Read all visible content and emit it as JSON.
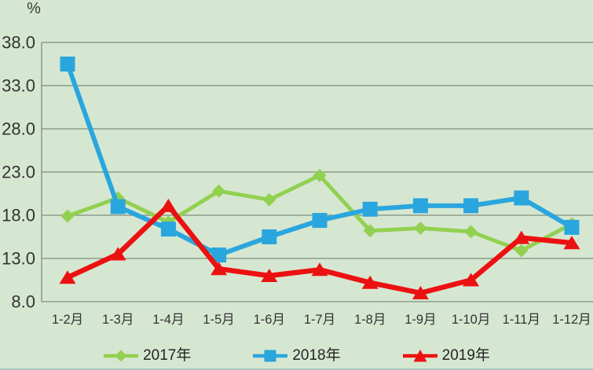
{
  "chart_data": {
    "type": "line",
    "title": "",
    "ylabel": "%",
    "xlabel": "",
    "ylim": [
      8.0,
      38.0
    ],
    "ytick_step": 5.0,
    "yticks": [
      "8.0",
      "13.0",
      "18.0",
      "23.0",
      "28.0",
      "33.0",
      "38.0"
    ],
    "grid": "horizontal-only",
    "legend_position": "bottom",
    "categories": [
      "1-2月",
      "1-3月",
      "1-4月",
      "1-5月",
      "1-6月",
      "1-7月",
      "1-8月",
      "1-9月",
      "1-10月",
      "1-11月",
      "1-12月"
    ],
    "series": [
      {
        "name": "2017年",
        "color": "#92D050",
        "marker": "diamond",
        "values": [
          17.9,
          20.0,
          17.2,
          20.8,
          19.8,
          22.6,
          16.2,
          16.5,
          16.1,
          13.9,
          17.0
        ]
      },
      {
        "name": "2018年",
        "color": "#2AA6DE",
        "marker": "square",
        "values": [
          35.5,
          19.0,
          16.4,
          13.4,
          15.5,
          17.4,
          18.7,
          19.1,
          19.1,
          20.0,
          16.6
        ]
      },
      {
        "name": "2019年",
        "color": "#EC1111",
        "marker": "triangle",
        "values": [
          10.8,
          13.5,
          19.1,
          11.8,
          11.0,
          11.7,
          10.2,
          9.0,
          10.5,
          15.4,
          14.8
        ]
      }
    ]
  },
  "styles": {
    "background": "#D6E7D1",
    "gridline": "#7E8E7E",
    "axis_text": "#333333",
    "legend_text": "#242424",
    "bottom_strip": "#A8C6BE"
  }
}
